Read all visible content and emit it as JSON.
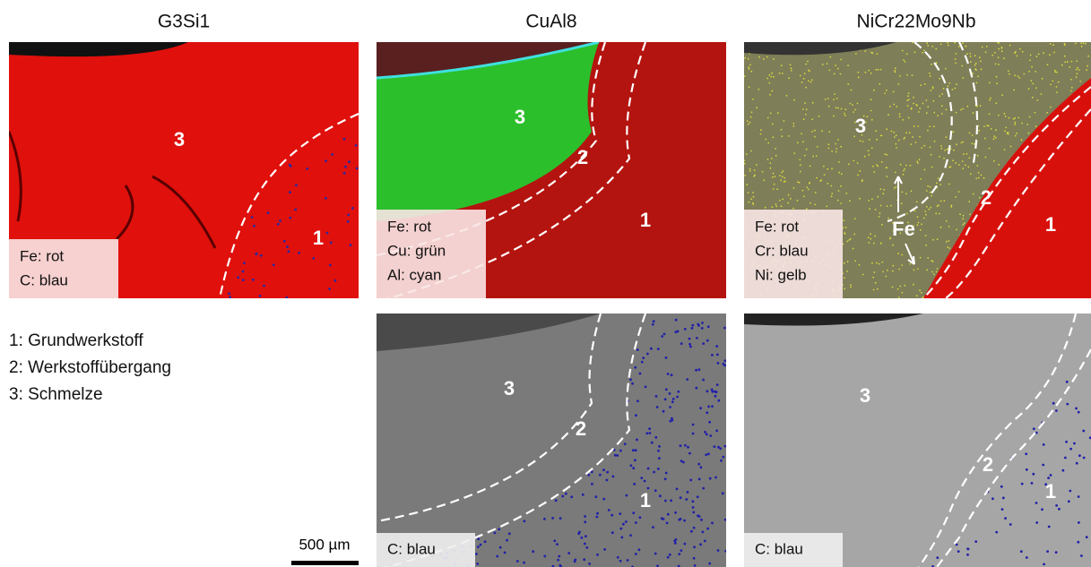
{
  "figure": {
    "columns": [
      "G3Si1",
      "CuAl8",
      "NiCr22Mo9Nb"
    ],
    "panels": [
      {
        "channels": [
          "Fe: rot",
          "C: blau"
        ],
        "zones": [
          "3",
          "1"
        ]
      },
      {
        "channels": [
          "Fe: rot",
          "Cu: grün",
          "Al: cyan"
        ],
        "zones": [
          "3",
          "2",
          "1"
        ]
      },
      {
        "channels": [
          "Fe: rot",
          "Cr: blau",
          "Ni: gelb"
        ],
        "zones": [
          "3",
          "2",
          "1"
        ],
        "annotation": "Fe"
      },
      {
        "channels": [
          "C: blau"
        ],
        "zones": [
          "3",
          "2",
          "1"
        ]
      },
      {
        "channels": [
          "C: blau"
        ],
        "zones": [
          "3",
          "2",
          "1"
        ]
      }
    ],
    "legend": [
      "1: Grundwerkstoff",
      "2: Werkstoffübergang",
      "3: Schmelze"
    ],
    "scale_bar": "500 µm"
  }
}
